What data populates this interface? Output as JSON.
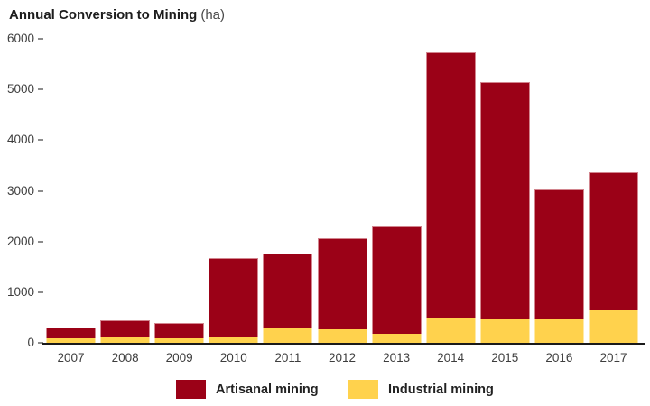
{
  "chart": {
    "title": "Annual Conversion to Mining",
    "unit_label": "(ha)"
  },
  "legend": {
    "artisanal": "Artisanal mining",
    "industrial": "Industrial mining"
  },
  "colors": {
    "artisanal": "#9B0117",
    "industrial": "#FFD24D",
    "axis_line": "#1A1A1A",
    "tick": "#8C8C8C",
    "text": "#3D3D3D"
  },
  "chart_data": {
    "type": "bar",
    "stacked": true,
    "title": "Annual Conversion to Mining",
    "unit": "ha",
    "xlabel": "",
    "ylabel": "",
    "ylim": [
      0,
      6000
    ],
    "yticks": [
      0,
      1000,
      2000,
      3000,
      4000,
      5000,
      6000
    ],
    "grid": false,
    "legend_position": "bottom",
    "categories": [
      "2007",
      "2008",
      "2009",
      "2010",
      "2011",
      "2012",
      "2013",
      "2014",
      "2015",
      "2016",
      "2017"
    ],
    "series": [
      {
        "name": "Artisanal mining",
        "color": "#9B0117",
        "values": [
          220,
          320,
          310,
          1560,
          1455,
          1800,
          2130,
          5240,
          4680,
          2560,
          2730
        ]
      },
      {
        "name": "Industrial mining",
        "color": "#FFD24D",
        "values": [
          90,
          130,
          90,
          120,
          300,
          270,
          170,
          500,
          460,
          470,
          640
        ]
      }
    ],
    "totals": [
      310,
      450,
      400,
      1680,
      1755,
      2070,
      2300,
      5740,
      5140,
      3030,
      3370
    ]
  }
}
